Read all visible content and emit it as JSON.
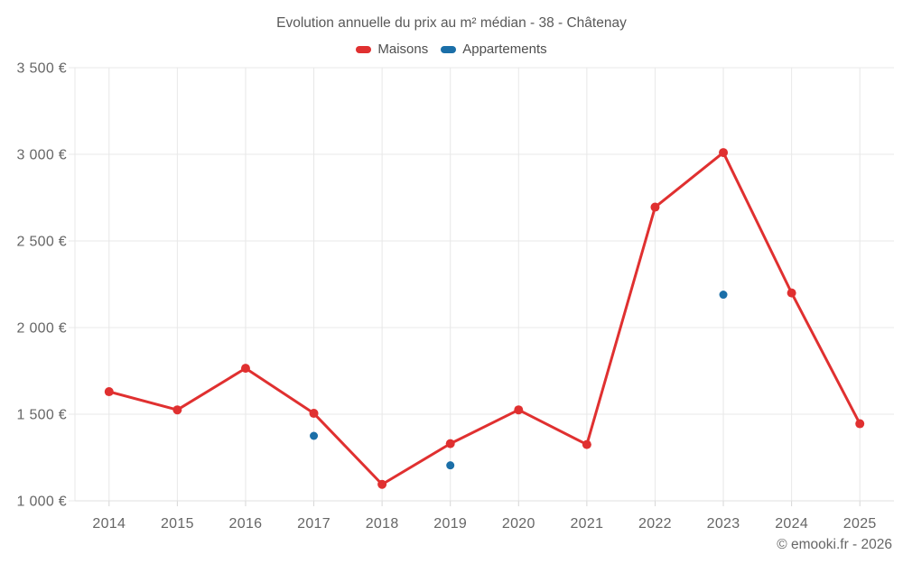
{
  "chart_data": {
    "type": "line",
    "title": "Evolution annuelle du prix au m² médian - 38 - Châtenay",
    "x": [
      "2014",
      "2015",
      "2016",
      "2017",
      "2018",
      "2019",
      "2020",
      "2021",
      "2022",
      "2023",
      "2024",
      "2025"
    ],
    "series": [
      {
        "name": "Maisons",
        "type": "line",
        "color": "#e03030",
        "values": [
          1630,
          1525,
          1765,
          1505,
          1095,
          1330,
          1525,
          1325,
          2695,
          3010,
          2200,
          1445
        ]
      },
      {
        "name": "Appartements",
        "type": "scatter",
        "color": "#1b6fa8",
        "values": [
          null,
          null,
          null,
          1375,
          null,
          1205,
          null,
          null,
          null,
          2190,
          null,
          null
        ]
      }
    ],
    "ylim": [
      1000,
      3500
    ],
    "ytick_step": 500,
    "ytick_labels": [
      "1 000 €",
      "1 500 €",
      "2 000 €",
      "2 500 €",
      "3 000 €",
      "3 500 €"
    ],
    "grid": true,
    "legend_position": "top",
    "xlabel": "",
    "ylabel": ""
  },
  "footer": {
    "credit": "© emooki.fr - 2026"
  },
  "colors": {
    "grid": "#e8e8e8",
    "axis": "#e0e0e0",
    "tick": "#d6d6d6",
    "text": "#666666",
    "title": "#595959",
    "background": "#ffffff"
  }
}
